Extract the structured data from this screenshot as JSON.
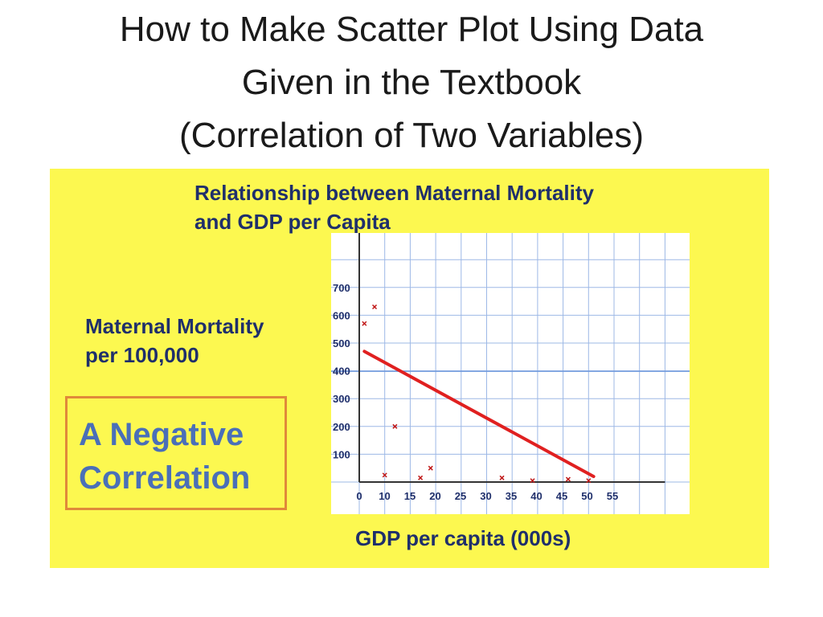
{
  "slide": {
    "title_lines": [
      "How to Make Scatter Plot Using Data",
      "Given in the Textbook",
      "(Correlation of Two Variables)"
    ]
  },
  "callout": {
    "lines": [
      "A Negative",
      "Correlation"
    ]
  },
  "colors": {
    "panel_background": "#fcf850",
    "text_navy": "#1f2f6b",
    "callout_blue": "#4a6fb8",
    "callout_border": "#e0893a",
    "trend_line": "#e02020",
    "marker": "#c01818",
    "grid": "#9db8e6"
  },
  "chart_data": {
    "type": "scatter",
    "title_lines": [
      "Relationship between Maternal Mortality",
      "and GDP per Capita"
    ],
    "xlabel": "GDP per capita (000s)",
    "ylabel_lines": [
      "Maternal Mortality",
      "per 100,000"
    ],
    "xlim": [
      0,
      65
    ],
    "ylim": [
      0,
      800
    ],
    "x_ticks": [
      0,
      10,
      15,
      20,
      25,
      30,
      35,
      40,
      45,
      50,
      55
    ],
    "y_ticks": [
      100,
      200,
      300,
      400,
      500,
      600,
      700
    ],
    "grid": true,
    "points": [
      {
        "x": 1,
        "y": 570
      },
      {
        "x": 3,
        "y": 630
      },
      {
        "x": 5,
        "y": 25
      },
      {
        "x": 7,
        "y": 200
      },
      {
        "x": 12,
        "y": 15
      },
      {
        "x": 14,
        "y": 50
      },
      {
        "x": 28,
        "y": 15
      },
      {
        "x": 34,
        "y": 5
      },
      {
        "x": 41,
        "y": 10
      },
      {
        "x": 45,
        "y": 5
      }
    ],
    "trend_line": {
      "x": [
        1,
        46
      ],
      "y": [
        470,
        20
      ]
    }
  }
}
